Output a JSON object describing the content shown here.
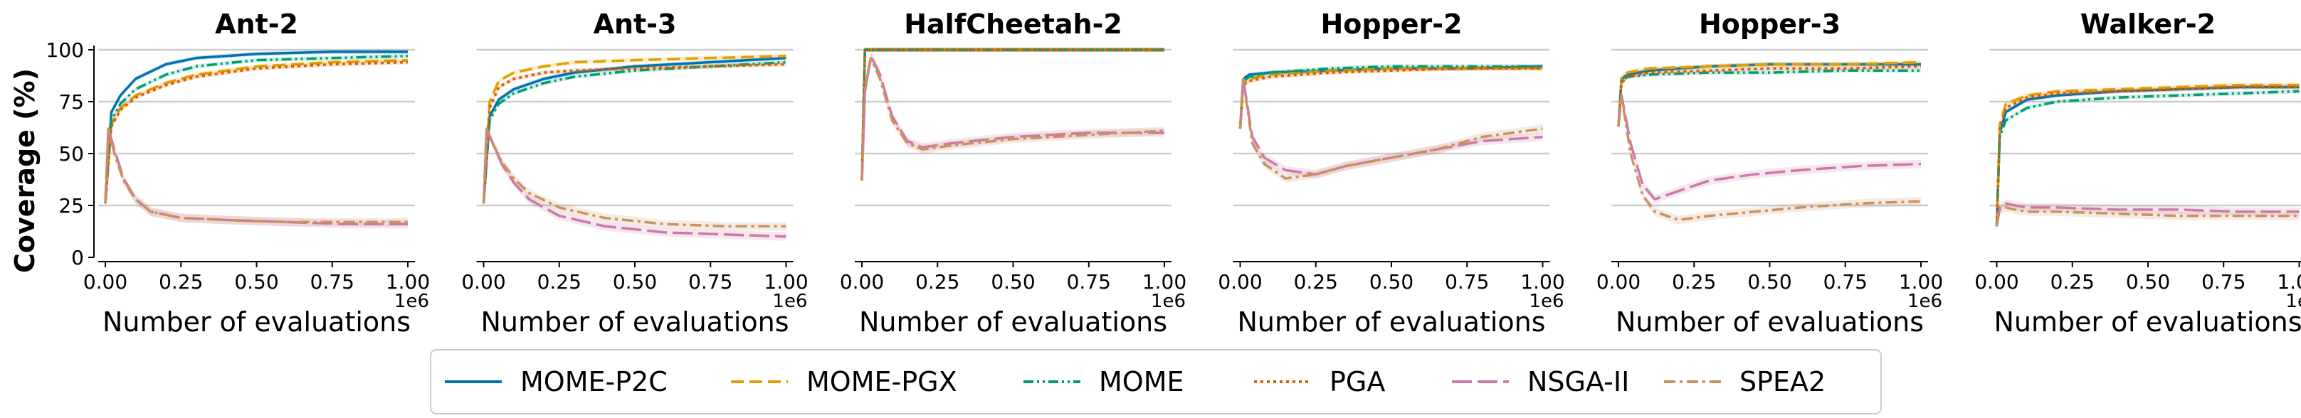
{
  "chart_data": {
    "type": "line",
    "ylabel": "Coverage (%)",
    "xlabel": "Number of evaluations",
    "x_scale_label": "1e6",
    "x_ticks": [
      "0.00",
      "0.25",
      "0.50",
      "0.75",
      "1.00"
    ],
    "y_ticks": [
      "0",
      "25",
      "50",
      "75",
      "100"
    ],
    "xlim": [
      0,
      1.0
    ],
    "ylim": [
      0,
      100
    ],
    "legend": [
      {
        "name": "MOME-P2C",
        "color": "#0072b2",
        "dash": "solid"
      },
      {
        "name": "MOME-PGX",
        "color": "#e69f00",
        "dash": "dashed"
      },
      {
        "name": "MOME",
        "color": "#009e73",
        "dash": "dashdotdot"
      },
      {
        "name": "PGA",
        "color": "#d55e00",
        "dash": "dotted"
      },
      {
        "name": "NSGA-II",
        "color": "#cc79a7",
        "dash": "long-dash"
      },
      {
        "name": "SPEA2",
        "color": "#ca9161",
        "dash": "dashdot"
      }
    ],
    "panels": [
      {
        "title": "Ant-2",
        "series": [
          {
            "name": "MOME-P2C",
            "x": [
              0,
              0.02,
              0.05,
              0.1,
              0.2,
              0.3,
              0.5,
              0.75,
              1.0
            ],
            "values": [
              26,
              70,
              78,
              86,
              93,
              96,
              98,
              99,
              99
            ]
          },
          {
            "name": "MOME-PGX",
            "x": [
              0,
              0.02,
              0.05,
              0.1,
              0.2,
              0.3,
              0.5,
              0.75,
              1.0
            ],
            "values": [
              26,
              64,
              72,
              78,
              84,
              88,
              92,
              94,
              95
            ]
          },
          {
            "name": "MOME",
            "x": [
              0,
              0.02,
              0.05,
              0.1,
              0.2,
              0.3,
              0.5,
              0.75,
              1.0
            ],
            "values": [
              26,
              66,
              74,
              81,
              88,
              92,
              95,
              96,
              97
            ]
          },
          {
            "name": "PGA",
            "x": [
              0,
              0.02,
              0.05,
              0.1,
              0.2,
              0.3,
              0.5,
              0.75,
              1.0
            ],
            "values": [
              26,
              63,
              71,
              77,
              83,
              87,
              91,
              93,
              94
            ]
          },
          {
            "name": "NSGA-II",
            "x": [
              0,
              0.01,
              0.03,
              0.06,
              0.1,
              0.15,
              0.25,
              0.4,
              0.6,
              0.8,
              1.0
            ],
            "values": [
              26,
              62,
              52,
              38,
              28,
              22,
              19,
              18,
              17,
              16,
              16
            ]
          },
          {
            "name": "SPEA2",
            "x": [
              0,
              0.01,
              0.03,
              0.06,
              0.1,
              0.15,
              0.25,
              0.4,
              0.6,
              0.8,
              1.0
            ],
            "values": [
              26,
              62,
              50,
              37,
              28,
              22,
              19,
              18,
              17,
              17,
              17
            ]
          }
        ]
      },
      {
        "title": "Ant-3",
        "series": [
          {
            "name": "MOME-P2C",
            "x": [
              0,
              0.02,
              0.05,
              0.1,
              0.2,
              0.3,
              0.5,
              0.75,
              1.0
            ],
            "values": [
              26,
              68,
              76,
              81,
              86,
              89,
              92,
              94,
              96
            ]
          },
          {
            "name": "MOME-PGX",
            "x": [
              0,
              0.02,
              0.05,
              0.1,
              0.2,
              0.3,
              0.5,
              0.75,
              1.0
            ],
            "values": [
              26,
              75,
              85,
              89,
              92,
              94,
              95,
              96,
              97
            ]
          },
          {
            "name": "MOME",
            "x": [
              0,
              0.02,
              0.05,
              0.1,
              0.2,
              0.3,
              0.5,
              0.75,
              1.0
            ],
            "values": [
              26,
              66,
              74,
              79,
              84,
              87,
              90,
              92,
              94
            ]
          },
          {
            "name": "PGA",
            "x": [
              0,
              0.02,
              0.05,
              0.1,
              0.2,
              0.3,
              0.5,
              0.75,
              1.0
            ],
            "values": [
              26,
              72,
              82,
              86,
              89,
              90,
              91,
              92,
              93
            ]
          },
          {
            "name": "NSGA-II",
            "x": [
              0,
              0.01,
              0.03,
              0.06,
              0.1,
              0.15,
              0.25,
              0.4,
              0.6,
              0.8,
              1.0
            ],
            "values": [
              26,
              62,
              55,
              45,
              36,
              28,
              20,
              15,
              12,
              11,
              10
            ]
          },
          {
            "name": "SPEA2",
            "x": [
              0,
              0.01,
              0.03,
              0.06,
              0.1,
              0.15,
              0.25,
              0.4,
              0.6,
              0.8,
              1.0
            ],
            "values": [
              26,
              62,
              55,
              46,
              38,
              31,
              24,
              19,
              16,
              15,
              15
            ]
          }
        ]
      },
      {
        "title": "HalfCheetah-2",
        "series": [
          {
            "name": "MOME-P2C",
            "x": [
              0,
              0.01,
              0.02,
              0.5,
              1.0
            ],
            "values": [
              37,
              100,
              100,
              100,
              100
            ]
          },
          {
            "name": "MOME-PGX",
            "x": [
              0,
              0.01,
              0.02,
              0.5,
              1.0
            ],
            "values": [
              37,
              100,
              100,
              100,
              100
            ]
          },
          {
            "name": "MOME",
            "x": [
              0,
              0.01,
              0.02,
              0.5,
              1.0
            ],
            "values": [
              37,
              100,
              100,
              100,
              100
            ]
          },
          {
            "name": "PGA",
            "x": [
              0,
              0.01,
              0.02,
              0.5,
              1.0
            ],
            "values": [
              37,
              100,
              100,
              100,
              100
            ]
          },
          {
            "name": "NSGA-II",
            "x": [
              0,
              0.01,
              0.03,
              0.06,
              0.1,
              0.15,
              0.2,
              0.3,
              0.5,
              0.75,
              1.0
            ],
            "values": [
              37,
              80,
              97,
              88,
              68,
              56,
              53,
              55,
              58,
              60,
              60
            ]
          },
          {
            "name": "SPEA2",
            "x": [
              0,
              0.01,
              0.03,
              0.06,
              0.1,
              0.15,
              0.2,
              0.3,
              0.5,
              0.75,
              1.0
            ],
            "values": [
              37,
              80,
              96,
              86,
              66,
              55,
              52,
              54,
              57,
              59,
              61
            ]
          }
        ]
      },
      {
        "title": "Hopper-2",
        "series": [
          {
            "name": "MOME-P2C",
            "x": [
              0,
              0.01,
              0.03,
              0.1,
              0.3,
              0.5,
              0.75,
              1.0
            ],
            "values": [
              62,
              86,
              88,
              89,
              90,
              91,
              91,
              92
            ]
          },
          {
            "name": "MOME-PGX",
            "x": [
              0,
              0.01,
              0.03,
              0.1,
              0.3,
              0.5,
              0.75,
              1.0
            ],
            "values": [
              62,
              84,
              86,
              88,
              90,
              91,
              91,
              91
            ]
          },
          {
            "name": "MOME",
            "x": [
              0,
              0.01,
              0.03,
              0.1,
              0.3,
              0.5,
              0.75,
              1.0
            ],
            "values": [
              62,
              85,
              87,
              89,
              91,
              92,
              92,
              92
            ]
          },
          {
            "name": "PGA",
            "x": [
              0,
              0.01,
              0.03,
              0.1,
              0.3,
              0.5,
              0.75,
              1.0
            ],
            "values": [
              62,
              83,
              85,
              87,
              89,
              90,
              91,
              91
            ]
          },
          {
            "name": "NSGA-II",
            "x": [
              0,
              0.01,
              0.04,
              0.08,
              0.15,
              0.25,
              0.35,
              0.5,
              0.65,
              0.8,
              1.0
            ],
            "values": [
              62,
              86,
              58,
              48,
              42,
              40,
              44,
              48,
              52,
              56,
              58
            ]
          },
          {
            "name": "SPEA2",
            "x": [
              0,
              0.01,
              0.04,
              0.08,
              0.15,
              0.25,
              0.35,
              0.5,
              0.65,
              0.8,
              1.0
            ],
            "values": [
              62,
              86,
              55,
              45,
              38,
              40,
              44,
              48,
              52,
              58,
              62
            ]
          }
        ]
      },
      {
        "title": "Hopper-3",
        "series": [
          {
            "name": "MOME-P2C",
            "x": [
              0,
              0.01,
              0.03,
              0.1,
              0.3,
              0.5,
              0.75,
              1.0
            ],
            "values": [
              63,
              86,
              88,
              90,
              92,
              93,
              93,
              93
            ]
          },
          {
            "name": "MOME-PGX",
            "x": [
              0,
              0.01,
              0.03,
              0.1,
              0.3,
              0.5,
              0.75,
              1.0
            ],
            "values": [
              63,
              87,
              89,
              91,
              92,
              93,
              93,
              94
            ]
          },
          {
            "name": "MOME",
            "x": [
              0,
              0.01,
              0.03,
              0.1,
              0.3,
              0.5,
              0.75,
              1.0
            ],
            "values": [
              63,
              85,
              87,
              88,
              89,
              89,
              90,
              90
            ]
          },
          {
            "name": "PGA",
            "x": [
              0,
              0.01,
              0.03,
              0.1,
              0.3,
              0.5,
              0.75,
              1.0
            ],
            "values": [
              63,
              84,
              87,
              89,
              90,
              91,
              91,
              92
            ]
          },
          {
            "name": "NSGA-II",
            "x": [
              0,
              0.01,
              0.04,
              0.08,
              0.12,
              0.2,
              0.3,
              0.45,
              0.6,
              0.8,
              1.0
            ],
            "values": [
              63,
              78,
              55,
              35,
              28,
              32,
              37,
              40,
              42,
              44,
              45
            ]
          },
          {
            "name": "SPEA2",
            "x": [
              0,
              0.01,
              0.04,
              0.08,
              0.12,
              0.2,
              0.3,
              0.45,
              0.6,
              0.8,
              1.0
            ],
            "values": [
              63,
              78,
              50,
              30,
              22,
              18,
              20,
              22,
              24,
              26,
              27
            ]
          }
        ]
      },
      {
        "title": "Walker-2",
        "series": [
          {
            "name": "MOME-P2C",
            "x": [
              0,
              0.01,
              0.03,
              0.1,
              0.2,
              0.4,
              0.6,
              0.8,
              1.0
            ],
            "values": [
              15,
              60,
              70,
              76,
              78,
              80,
              81,
              82,
              82
            ]
          },
          {
            "name": "MOME-PGX",
            "x": [
              0,
              0.01,
              0.03,
              0.1,
              0.2,
              0.4,
              0.6,
              0.8,
              1.0
            ],
            "values": [
              15,
              64,
              74,
              78,
              80,
              81,
              82,
              83,
              83
            ]
          },
          {
            "name": "MOME",
            "x": [
              0,
              0.01,
              0.03,
              0.1,
              0.2,
              0.4,
              0.6,
              0.8,
              1.0
            ],
            "values": [
              15,
              58,
              66,
              72,
              75,
              77,
              78,
              79,
              80
            ]
          },
          {
            "name": "PGA",
            "x": [
              0,
              0.01,
              0.03,
              0.1,
              0.2,
              0.4,
              0.6,
              0.8,
              1.0
            ],
            "values": [
              15,
              62,
              72,
              77,
              79,
              80,
              81,
              82,
              82
            ]
          },
          {
            "name": "NSGA-II",
            "x": [
              0,
              0.01,
              0.03,
              0.06,
              0.1,
              0.2,
              0.4,
              0.6,
              0.8,
              1.0
            ],
            "values": [
              15,
              24,
              26,
              25,
              24,
              24,
              23,
              23,
              22,
              22
            ]
          },
          {
            "name": "SPEA2",
            "x": [
              0,
              0.01,
              0.03,
              0.06,
              0.1,
              0.2,
              0.4,
              0.6,
              0.8,
              1.0
            ],
            "values": [
              15,
              23,
              24,
              23,
              22,
              22,
              21,
              20,
              20,
              20
            ]
          }
        ]
      }
    ]
  }
}
